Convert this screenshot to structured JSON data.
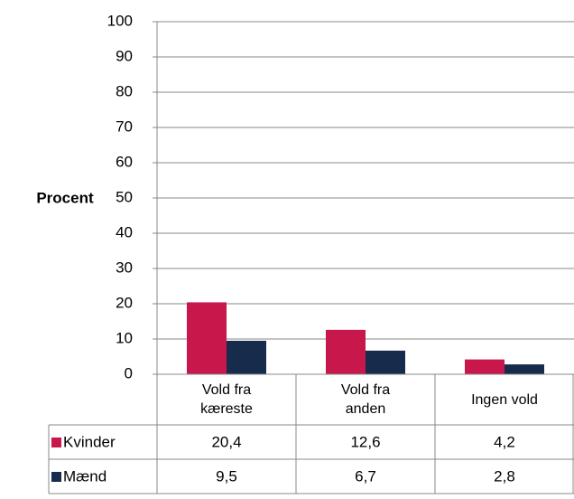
{
  "chart_data": {
    "type": "bar",
    "ylabel": "Procent",
    "categories": [
      "Vold fra kæreste",
      "Vold fra anden",
      "Ingen vold"
    ],
    "series": [
      {
        "name": "Kvinder",
        "color": "#c8174a",
        "values": [
          20.4,
          12.6,
          4.2
        ],
        "value_labels": [
          "20,4",
          "12,6",
          "4,2"
        ]
      },
      {
        "name": "Mænd",
        "color": "#172b4d",
        "values": [
          9.5,
          6.7,
          2.8
        ],
        "value_labels": [
          "9,5",
          "6,7",
          "2,8"
        ]
      }
    ],
    "ylim": [
      0,
      100
    ],
    "yticks": [
      0,
      10,
      20,
      30,
      40,
      50,
      60,
      70,
      80,
      90,
      100
    ],
    "grid": true
  }
}
